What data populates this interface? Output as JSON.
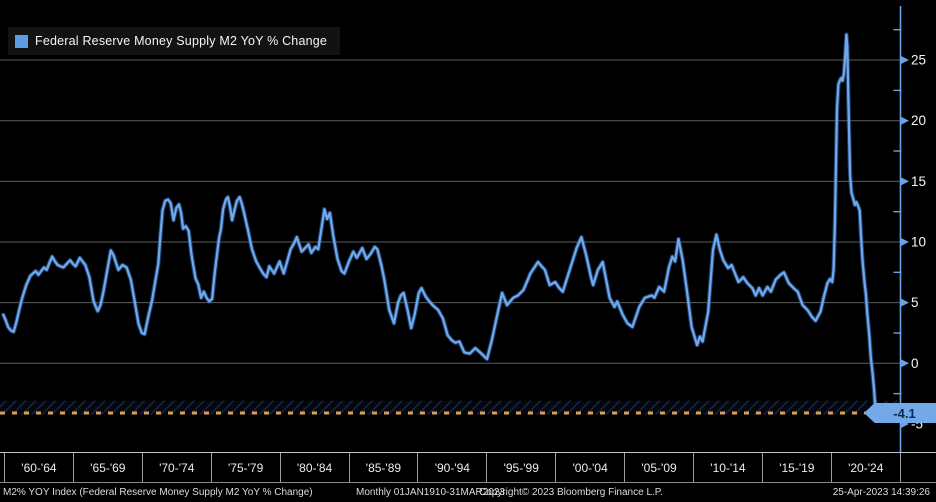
{
  "legend": {
    "label": "Federal Reserve Money Supply M2 YoY % Change",
    "swatch_color": "#5a9de4"
  },
  "last_value": {
    "label": "-4.1",
    "value": -4.1
  },
  "reference_line": {
    "value": -4.1,
    "color": "#d9a055",
    "style": "dashed"
  },
  "footer": {
    "left": "M2% YOY Index (Federal Reserve Money Supply M2 YoY % Change)",
    "period": "Monthly 01JAN1910-31MAR2023",
    "copyright": "Copyright© 2023 Bloomberg Finance L.P.",
    "timestamp": "25-Apr-2023 14:39:26"
  },
  "colors": {
    "line": "#6fa9ec",
    "line_halo": "#2f66ad",
    "axis": "#6aa2e6",
    "grid": "#5c5c5c",
    "badge_bg": "#74a9e9",
    "badge_text": "#0b2750",
    "dashed": "#d9a055",
    "tick_label": "#f5f5f5"
  },
  "chart_data": {
    "type": "line",
    "title": "Federal Reserve Money Supply M2 YoY % Change",
    "xlabel": "",
    "ylabel": "M2 YoY % Change",
    "legend_position": "top-left",
    "grid": "horizontal",
    "ylim": [
      -6.5,
      28
    ],
    "y_major_ticks": [
      25,
      20,
      15,
      10,
      5,
      0,
      -5
    ],
    "y_gridline_values": [
      25,
      20,
      15,
      10,
      5,
      0
    ],
    "y_minor_tick_step": 2.5,
    "x_tick_labels": [
      "'60-'64",
      "'65-'69",
      "'70-'74",
      "'75-'79",
      "'80-'84",
      "'85-'89",
      "'90-'94",
      "'95-'99",
      "'00-'04",
      "'05-'09",
      "'10-'14",
      "'15-'19",
      "'20-'24"
    ],
    "x_range_years": [
      1959.95,
      2024.95
    ],
    "series": [
      {
        "name": "Federal Reserve Money Supply M2 YoY % Change",
        "points": [
          [
            1959.95,
            4.0
          ],
          [
            1960.1,
            3.6
          ],
          [
            1960.3,
            3.0
          ],
          [
            1960.5,
            2.7
          ],
          [
            1960.7,
            2.6
          ],
          [
            1960.9,
            3.4
          ],
          [
            1961.1,
            4.4
          ],
          [
            1961.3,
            5.3
          ],
          [
            1961.6,
            6.4
          ],
          [
            1961.9,
            7.2
          ],
          [
            1962.1,
            7.4
          ],
          [
            1962.3,
            7.6
          ],
          [
            1962.5,
            7.3
          ],
          [
            1962.7,
            7.6
          ],
          [
            1962.9,
            7.9
          ],
          [
            1963.1,
            7.7
          ],
          [
            1963.3,
            8.3
          ],
          [
            1963.5,
            8.8
          ],
          [
            1963.7,
            8.4
          ],
          [
            1963.9,
            8.1
          ],
          [
            1964.1,
            8.0
          ],
          [
            1964.3,
            7.9
          ],
          [
            1964.55,
            8.2
          ],
          [
            1964.8,
            8.5
          ],
          [
            1965.0,
            8.2
          ],
          [
            1965.2,
            8.0
          ],
          [
            1965.5,
            8.7
          ],
          [
            1965.7,
            8.4
          ],
          [
            1965.9,
            8.1
          ],
          [
            1966.2,
            7.1
          ],
          [
            1966.5,
            5.1
          ],
          [
            1966.8,
            4.3
          ],
          [
            1967.0,
            4.8
          ],
          [
            1967.2,
            5.8
          ],
          [
            1967.5,
            7.7
          ],
          [
            1967.75,
            9.3
          ],
          [
            1967.95,
            8.9
          ],
          [
            1968.15,
            8.2
          ],
          [
            1968.3,
            7.7
          ],
          [
            1968.6,
            8.1
          ],
          [
            1968.9,
            7.9
          ],
          [
            1969.2,
            6.9
          ],
          [
            1969.5,
            5.0
          ],
          [
            1969.75,
            3.3
          ],
          [
            1970.0,
            2.5
          ],
          [
            1970.2,
            2.4
          ],
          [
            1970.5,
            4.0
          ],
          [
            1970.75,
            5.2
          ],
          [
            1971.0,
            6.9
          ],
          [
            1971.2,
            8.2
          ],
          [
            1971.35,
            10.5
          ],
          [
            1971.5,
            12.6
          ],
          [
            1971.7,
            13.4
          ],
          [
            1971.9,
            13.5
          ],
          [
            1972.1,
            13.2
          ],
          [
            1972.3,
            11.8
          ],
          [
            1972.5,
            12.8
          ],
          [
            1972.7,
            13.1
          ],
          [
            1972.85,
            12.4
          ],
          [
            1973.0,
            11.1
          ],
          [
            1973.2,
            11.3
          ],
          [
            1973.4,
            10.9
          ],
          [
            1973.6,
            9.0
          ],
          [
            1973.9,
            7.0
          ],
          [
            1974.1,
            6.5
          ],
          [
            1974.3,
            5.4
          ],
          [
            1974.5,
            5.9
          ],
          [
            1974.7,
            5.4
          ],
          [
            1974.9,
            5.1
          ],
          [
            1975.1,
            5.3
          ],
          [
            1975.3,
            7.5
          ],
          [
            1975.6,
            10.3
          ],
          [
            1975.75,
            11.1
          ],
          [
            1975.9,
            12.7
          ],
          [
            1976.1,
            13.5
          ],
          [
            1976.25,
            13.7
          ],
          [
            1976.4,
            12.9
          ],
          [
            1976.55,
            11.8
          ],
          [
            1976.7,
            12.5
          ],
          [
            1976.9,
            13.4
          ],
          [
            1977.1,
            13.7
          ],
          [
            1977.25,
            13.2
          ],
          [
            1977.4,
            12.5
          ],
          [
            1977.7,
            11.0
          ],
          [
            1978.0,
            9.4
          ],
          [
            1978.3,
            8.4
          ],
          [
            1978.55,
            7.9
          ],
          [
            1978.8,
            7.4
          ],
          [
            1979.05,
            7.1
          ],
          [
            1979.25,
            8.0
          ],
          [
            1979.6,
            7.4
          ],
          [
            1979.8,
            7.9
          ],
          [
            1980.0,
            8.4
          ],
          [
            1980.3,
            7.4
          ],
          [
            1980.55,
            8.4
          ],
          [
            1980.8,
            9.4
          ],
          [
            1981.05,
            9.9
          ],
          [
            1981.25,
            10.4
          ],
          [
            1981.6,
            9.2
          ],
          [
            1981.85,
            9.5
          ],
          [
            1982.1,
            9.8
          ],
          [
            1982.3,
            9.1
          ],
          [
            1982.6,
            9.6
          ],
          [
            1982.8,
            9.4
          ],
          [
            1983.0,
            10.8
          ],
          [
            1983.25,
            12.7
          ],
          [
            1983.45,
            11.9
          ],
          [
            1983.65,
            12.4
          ],
          [
            1983.9,
            10.5
          ],
          [
            1984.2,
            8.6
          ],
          [
            1984.5,
            7.6
          ],
          [
            1984.7,
            7.4
          ],
          [
            1985.0,
            8.3
          ],
          [
            1985.35,
            9.2
          ],
          [
            1985.6,
            8.7
          ],
          [
            1986.0,
            9.5
          ],
          [
            1986.3,
            8.6
          ],
          [
            1986.6,
            9.0
          ],
          [
            1986.9,
            9.6
          ],
          [
            1987.1,
            9.4
          ],
          [
            1987.4,
            8.0
          ],
          [
            1987.6,
            6.9
          ],
          [
            1987.95,
            4.4
          ],
          [
            1988.3,
            3.3
          ],
          [
            1988.6,
            5.0
          ],
          [
            1988.8,
            5.6
          ],
          [
            1989.0,
            5.8
          ],
          [
            1989.3,
            4.3
          ],
          [
            1989.55,
            2.9
          ],
          [
            1989.8,
            4.0
          ],
          [
            1990.1,
            5.8
          ],
          [
            1990.3,
            6.2
          ],
          [
            1990.6,
            5.5
          ],
          [
            1990.8,
            5.2
          ],
          [
            1991.1,
            4.8
          ],
          [
            1991.5,
            4.4
          ],
          [
            1991.85,
            3.7
          ],
          [
            1992.2,
            2.3
          ],
          [
            1992.5,
            1.9
          ],
          [
            1992.75,
            1.7
          ],
          [
            1993.05,
            1.8
          ],
          [
            1993.4,
            0.9
          ],
          [
            1993.8,
            0.8
          ],
          [
            1994.2,
            1.25
          ],
          [
            1994.6,
            0.85
          ],
          [
            1995.05,
            0.35
          ],
          [
            1995.4,
            1.9
          ],
          [
            1995.8,
            4.0
          ],
          [
            1996.15,
            5.8
          ],
          [
            1996.5,
            4.8
          ],
          [
            1996.95,
            5.4
          ],
          [
            1997.3,
            5.6
          ],
          [
            1997.7,
            6.05
          ],
          [
            1998.2,
            7.4
          ],
          [
            1998.75,
            8.35
          ],
          [
            1999.05,
            7.95
          ],
          [
            1999.25,
            7.7
          ],
          [
            1999.6,
            6.45
          ],
          [
            2000.0,
            6.7
          ],
          [
            2000.3,
            6.2
          ],
          [
            2000.55,
            5.9
          ],
          [
            2001.05,
            7.7
          ],
          [
            2001.55,
            9.5
          ],
          [
            2001.9,
            10.4
          ],
          [
            2002.25,
            8.9
          ],
          [
            2002.6,
            7.1
          ],
          [
            2002.75,
            6.45
          ],
          [
            2003.1,
            7.7
          ],
          [
            2003.45,
            8.35
          ],
          [
            2003.95,
            5.4
          ],
          [
            2004.3,
            4.65
          ],
          [
            2004.5,
            5.1
          ],
          [
            2004.9,
            4.0
          ],
          [
            2005.25,
            3.3
          ],
          [
            2005.6,
            3.0
          ],
          [
            2006.1,
            4.65
          ],
          [
            2006.5,
            5.4
          ],
          [
            2007.0,
            5.6
          ],
          [
            2007.2,
            5.4
          ],
          [
            2007.55,
            6.3
          ],
          [
            2007.9,
            5.9
          ],
          [
            2008.25,
            7.9
          ],
          [
            2008.5,
            8.8
          ],
          [
            2008.7,
            8.4
          ],
          [
            2008.95,
            10.25
          ],
          [
            2009.25,
            8.5
          ],
          [
            2009.55,
            6.05
          ],
          [
            2009.9,
            3.0
          ],
          [
            2010.3,
            1.5
          ],
          [
            2010.5,
            2.2
          ],
          [
            2010.7,
            1.8
          ],
          [
            2011.1,
            4.25
          ],
          [
            2011.45,
            9.35
          ],
          [
            2011.7,
            10.6
          ],
          [
            2011.95,
            9.35
          ],
          [
            2012.2,
            8.5
          ],
          [
            2012.55,
            7.85
          ],
          [
            2012.8,
            8.1
          ],
          [
            2013.05,
            7.4
          ],
          [
            2013.3,
            6.7
          ],
          [
            2013.65,
            7.1
          ],
          [
            2013.95,
            6.6
          ],
          [
            2014.3,
            6.2
          ],
          [
            2014.55,
            5.6
          ],
          [
            2014.8,
            6.2
          ],
          [
            2015.05,
            5.6
          ],
          [
            2015.4,
            6.3
          ],
          [
            2015.65,
            5.9
          ],
          [
            2016.0,
            6.9
          ],
          [
            2016.35,
            7.3
          ],
          [
            2016.6,
            7.5
          ],
          [
            2016.95,
            6.6
          ],
          [
            2017.3,
            6.2
          ],
          [
            2017.6,
            5.9
          ],
          [
            2017.95,
            4.8
          ],
          [
            2018.3,
            4.4
          ],
          [
            2018.65,
            3.8
          ],
          [
            2018.9,
            3.5
          ],
          [
            2019.25,
            4.25
          ],
          [
            2019.5,
            5.5
          ],
          [
            2019.75,
            6.6
          ],
          [
            2019.95,
            6.95
          ],
          [
            2020.1,
            6.7
          ],
          [
            2020.2,
            7.7
          ],
          [
            2020.3,
            11.5
          ],
          [
            2020.38,
            16.5
          ],
          [
            2020.45,
            21.0
          ],
          [
            2020.55,
            23.0
          ],
          [
            2020.65,
            23.3
          ],
          [
            2020.75,
            23.5
          ],
          [
            2020.85,
            23.3
          ],
          [
            2020.95,
            23.9
          ],
          [
            2021.05,
            25.5
          ],
          [
            2021.13,
            27.1
          ],
          [
            2021.2,
            26.2
          ],
          [
            2021.3,
            20.5
          ],
          [
            2021.4,
            15.5
          ],
          [
            2021.5,
            14.05
          ],
          [
            2021.6,
            13.7
          ],
          [
            2021.75,
            13.05
          ],
          [
            2021.85,
            13.3
          ],
          [
            2021.95,
            13.05
          ],
          [
            2022.1,
            12.6
          ],
          [
            2022.2,
            10.4
          ],
          [
            2022.3,
            8.5
          ],
          [
            2022.45,
            6.6
          ],
          [
            2022.55,
            5.7
          ],
          [
            2022.65,
            4.1
          ],
          [
            2022.8,
            2.2
          ],
          [
            2022.9,
            0.5
          ],
          [
            2023.05,
            -1.0
          ],
          [
            2023.15,
            -2.3
          ],
          [
            2023.25,
            -4.1
          ]
        ]
      }
    ]
  }
}
